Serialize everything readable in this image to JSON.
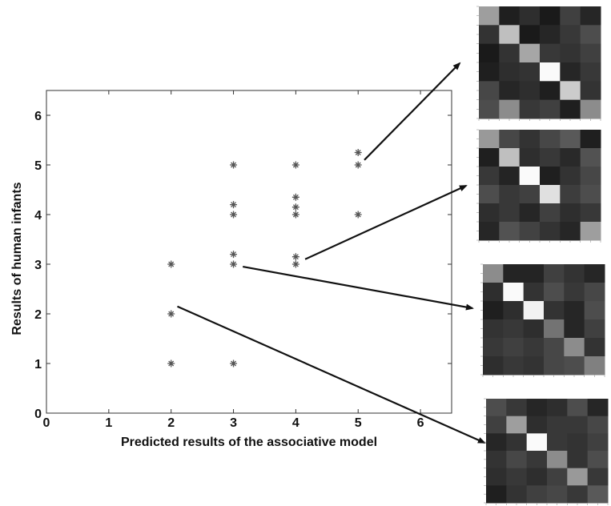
{
  "chart_data": {
    "type": "scatter",
    "title": "",
    "xlabel": "Predicted results of the associative model",
    "ylabel": "Results of human infants",
    "xlim": [
      0,
      6.5
    ],
    "ylim": [
      0,
      6.5
    ],
    "xticks": [
      0,
      1,
      2,
      3,
      4,
      5,
      6
    ],
    "yticks": [
      0,
      1,
      2,
      3,
      4,
      5,
      6
    ],
    "grid": false,
    "marker": "star",
    "series": [
      {
        "points": [
          {
            "x": 2,
            "y": 1
          },
          {
            "x": 2,
            "y": 2
          },
          {
            "x": 2,
            "y": 3
          },
          {
            "x": 3,
            "y": 1
          },
          {
            "x": 3,
            "y": 3
          },
          {
            "x": 3,
            "y": 3.2
          },
          {
            "x": 3,
            "y": 4
          },
          {
            "x": 3,
            "y": 4.2
          },
          {
            "x": 3,
            "y": 5
          },
          {
            "x": 4,
            "y": 3
          },
          {
            "x": 4,
            "y": 3.15
          },
          {
            "x": 4,
            "y": 4
          },
          {
            "x": 4,
            "y": 4.15
          },
          {
            "x": 4,
            "y": 4.35
          },
          {
            "x": 4,
            "y": 5
          },
          {
            "x": 5,
            "y": 4
          },
          {
            "x": 5,
            "y": 5
          },
          {
            "x": 5,
            "y": 5.25
          }
        ]
      }
    ],
    "arrows": [
      {
        "from": {
          "x": 5.1,
          "y": 5.1
        },
        "to_matrix": 0
      },
      {
        "from": {
          "x": 4.15,
          "y": 3.1
        },
        "to_matrix": 1
      },
      {
        "from": {
          "x": 3.15,
          "y": 2.95
        },
        "to_matrix": 2
      },
      {
        "from": {
          "x": 2.1,
          "y": 2.15
        },
        "to_matrix": 3
      }
    ],
    "matrices": [
      {
        "rows": [
          [
            0.62,
            0.12,
            0.18,
            0.1,
            0.25,
            0.15
          ],
          [
            0.2,
            0.75,
            0.1,
            0.15,
            0.22,
            0.3
          ],
          [
            0.1,
            0.2,
            0.65,
            0.22,
            0.2,
            0.25
          ],
          [
            0.12,
            0.18,
            0.2,
            0.98,
            0.15,
            0.22
          ],
          [
            0.28,
            0.15,
            0.18,
            0.12,
            0.8,
            0.2
          ],
          [
            0.3,
            0.55,
            0.22,
            0.25,
            0.12,
            0.55
          ]
        ]
      },
      {
        "rows": [
          [
            0.6,
            0.28,
            0.2,
            0.28,
            0.35,
            0.12
          ],
          [
            0.12,
            0.75,
            0.18,
            0.22,
            0.16,
            0.32
          ],
          [
            0.22,
            0.14,
            0.98,
            0.12,
            0.2,
            0.28
          ],
          [
            0.3,
            0.22,
            0.25,
            0.88,
            0.24,
            0.3
          ],
          [
            0.18,
            0.22,
            0.15,
            0.25,
            0.18,
            0.22
          ],
          [
            0.15,
            0.32,
            0.26,
            0.2,
            0.15,
            0.62
          ]
        ]
      },
      {
        "rows": [
          [
            0.55,
            0.14,
            0.14,
            0.25,
            0.2,
            0.15
          ],
          [
            0.18,
            0.98,
            0.2,
            0.3,
            0.22,
            0.28
          ],
          [
            0.12,
            0.18,
            0.95,
            0.2,
            0.15,
            0.3
          ],
          [
            0.2,
            0.22,
            0.18,
            0.45,
            0.15,
            0.25
          ],
          [
            0.22,
            0.25,
            0.22,
            0.28,
            0.55,
            0.2
          ],
          [
            0.18,
            0.22,
            0.2,
            0.28,
            0.3,
            0.5
          ]
        ]
      },
      {
        "rows": [
          [
            0.3,
            0.22,
            0.15,
            0.18,
            0.3,
            0.15
          ],
          [
            0.25,
            0.62,
            0.18,
            0.22,
            0.22,
            0.28
          ],
          [
            0.15,
            0.2,
            0.98,
            0.22,
            0.2,
            0.25
          ],
          [
            0.2,
            0.28,
            0.22,
            0.55,
            0.2,
            0.3
          ],
          [
            0.18,
            0.22,
            0.18,
            0.25,
            0.6,
            0.22
          ],
          [
            0.12,
            0.2,
            0.25,
            0.28,
            0.22,
            0.35
          ]
        ]
      }
    ]
  }
}
